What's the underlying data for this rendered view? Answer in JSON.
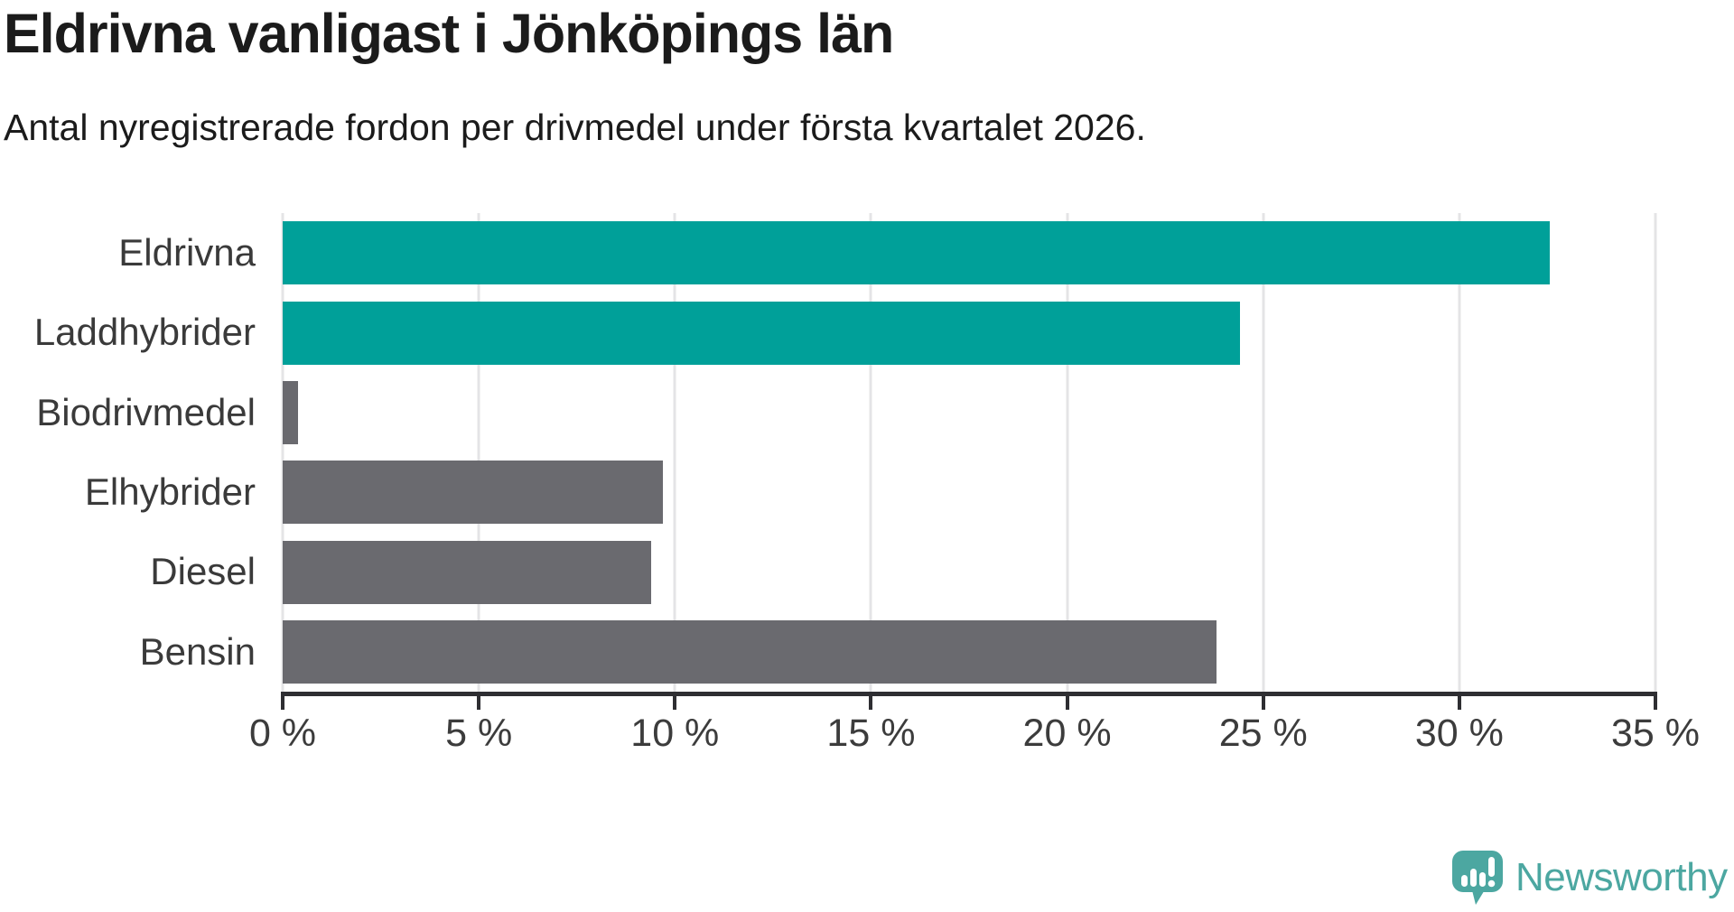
{
  "title": "Eldrivna vanligast i Jönköpings län",
  "subtitle": "Antal nyregistrerade fordon per drivmedel under första kvartalet 2026.",
  "branding": {
    "logo_text": "Newsworthy",
    "logo_color": "#4CA7A1",
    "logo_icon": "speech-bubble-with-bar-chart-and-exclamation"
  },
  "colors": {
    "highlight_bar": "#00A099",
    "default_bar": "#6A6A6F",
    "title_text": "#1b1b1b",
    "label_text": "#3A3A3A",
    "tick_text": "#3C3C3C",
    "gridline": "#E4E4E6",
    "axis": "#2E2E32",
    "background": "#FFFFFF"
  },
  "chart_data": {
    "type": "bar",
    "orientation": "horizontal",
    "title": "Eldrivna vanligast i Jönköpings län",
    "subtitle": "Antal nyregistrerade fordon per drivmedel under första kvartalet 2026.",
    "categories": [
      "Eldrivna",
      "Laddhybrider",
      "Biodrivmedel",
      "Elhybrider",
      "Diesel",
      "Bensin"
    ],
    "values": [
      32.3,
      24.4,
      0.4,
      9.7,
      9.4,
      23.8
    ],
    "unit": "%",
    "bar_colors": [
      "#00A099",
      "#00A099",
      "#6A6A6F",
      "#6A6A6F",
      "#6A6A6F",
      "#6A6A6F"
    ],
    "highlighted_categories": [
      "Eldrivna",
      "Laddhybrider"
    ],
    "xlabel": "",
    "ylabel": "",
    "xlim": [
      0,
      35
    ],
    "xticks": [
      {
        "value": 0,
        "label": "0 %"
      },
      {
        "value": 5,
        "label": "5 %"
      },
      {
        "value": 10,
        "label": "10 %"
      },
      {
        "value": 15,
        "label": "15 %"
      },
      {
        "value": 20,
        "label": "20 %"
      },
      {
        "value": 25,
        "label": "25 %"
      },
      {
        "value": 30,
        "label": "30 %"
      },
      {
        "value": 35,
        "label": "35 %"
      }
    ],
    "grid": "vertical-gridlines-on",
    "legend": "none",
    "data_labels": "none"
  }
}
